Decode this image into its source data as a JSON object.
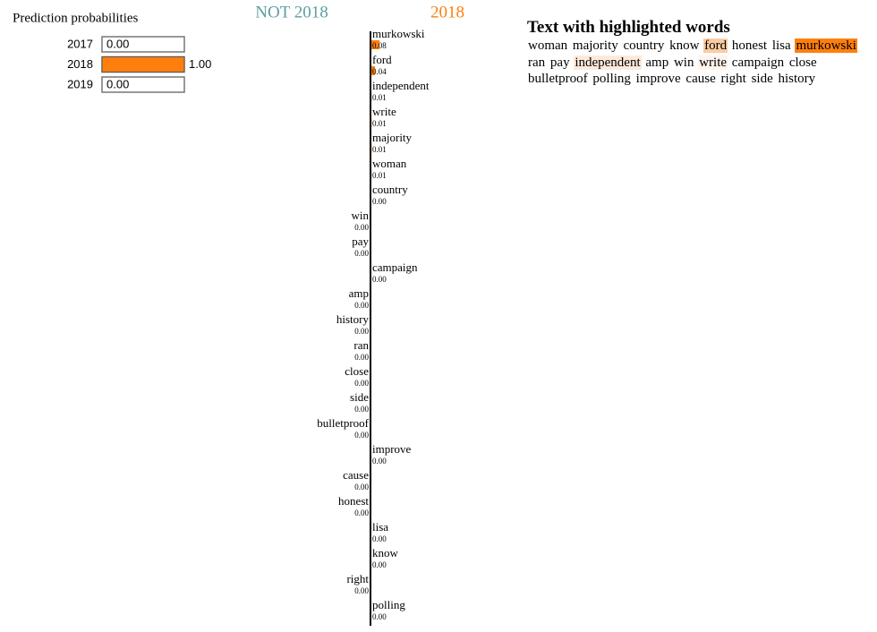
{
  "chart_data": [
    {
      "type": "probability-bars",
      "title": "Prediction probabilities",
      "categories": [
        "2017",
        "2018",
        "2019"
      ],
      "values": [
        0,
        1,
        0
      ],
      "value_labels": [
        "0.00",
        "1.00",
        "0.00"
      ],
      "xlim": [
        0,
        1
      ],
      "color": "#ff7f0e"
    },
    {
      "type": "diverging-bars",
      "classes": [
        {
          "name": "NOT 2018",
          "color": "#5f9ea0"
        },
        {
          "name": "2018",
          "color": "#ff7f0e"
        }
      ],
      "categories": [
        "murkowski",
        "ford",
        "independent",
        "write",
        "majority",
        "woman",
        "country",
        "win",
        "pay",
        "campaign",
        "amp",
        "history",
        "ran",
        "close",
        "side",
        "bulletproof",
        "improve",
        "cause",
        "honest",
        "lisa",
        "know",
        "right",
        "polling"
      ],
      "values": [
        0.08,
        0.04,
        0.01,
        0.01,
        0.01,
        0.01,
        0.002,
        -0.002,
        -0.002,
        0.002,
        -0.002,
        -0.002,
        -0.002,
        -0.002,
        -0.002,
        -0.002,
        0.002,
        -0.002,
        -0.002,
        0.002,
        0.002,
        -0.002,
        0.002
      ],
      "value_labels": [
        "0.08",
        "0.04",
        "0.01",
        "0.01",
        "0.01",
        "0.01",
        "0.00",
        "0.00",
        "0.00",
        "0.00",
        "0.00",
        "0.00",
        "0.00",
        "0.00",
        "0.00",
        "0.00",
        "0.00",
        "0.00",
        "0.00",
        "0.00",
        "0.00",
        "0.00",
        "0.00"
      ]
    }
  ],
  "text_panel": {
    "title": "Text with highlighted words",
    "words": [
      {
        "text": "woman",
        "highlight": null
      },
      {
        "text": "majority",
        "highlight": null
      },
      {
        "text": "country",
        "highlight": null
      },
      {
        "text": "know",
        "highlight": null
      },
      {
        "text": "ford",
        "highlight": "#fbcba3"
      },
      {
        "text": "honest",
        "highlight": null
      },
      {
        "text": "lisa",
        "highlight": null
      },
      {
        "text": "murkowski",
        "highlight": "#ff7f0e"
      },
      {
        "text": "ran",
        "highlight": null
      },
      {
        "text": "pay",
        "highlight": null
      },
      {
        "text": "independent",
        "highlight": "#fdeadb"
      },
      {
        "text": "amp",
        "highlight": null
      },
      {
        "text": "win",
        "highlight": null
      },
      {
        "text": "write",
        "highlight": "#fef4ec"
      },
      {
        "text": "campaign",
        "highlight": null
      },
      {
        "text": "close",
        "highlight": null
      },
      {
        "text": "bulletproof",
        "highlight": null
      },
      {
        "text": "polling",
        "highlight": null
      },
      {
        "text": "improve",
        "highlight": null
      },
      {
        "text": "cause",
        "highlight": null
      },
      {
        "text": "right",
        "highlight": null
      },
      {
        "text": "side",
        "highlight": null
      },
      {
        "text": "history",
        "highlight": null
      }
    ]
  }
}
